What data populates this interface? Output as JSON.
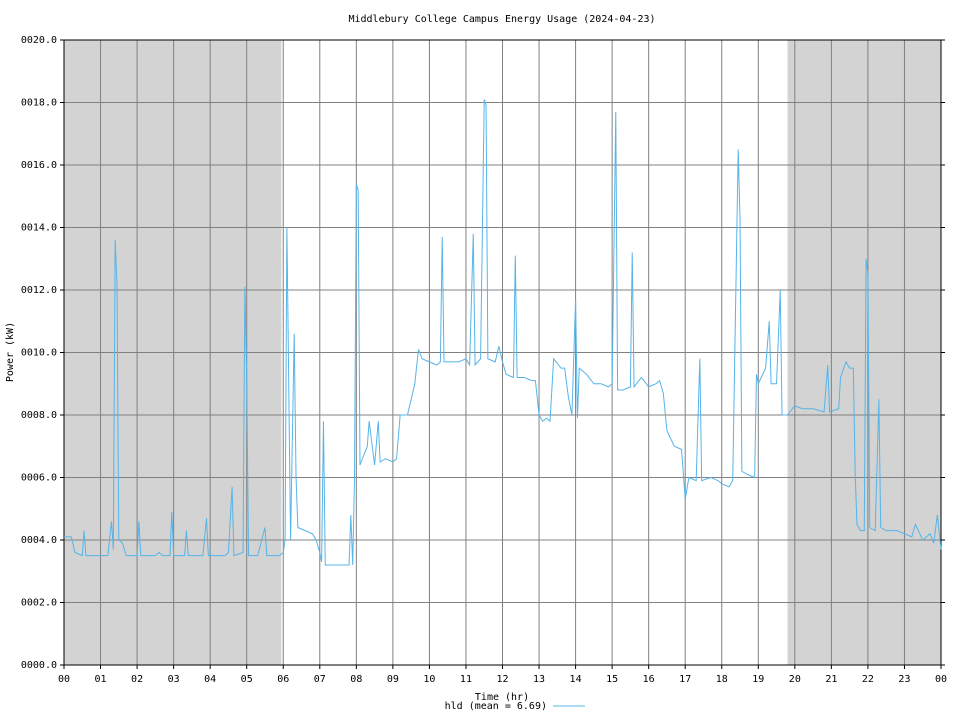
{
  "chart_data": {
    "type": "line",
    "title": "Middlebury College Campus Energy Usage (2024-04-23)",
    "xlabel": "Time (hr)",
    "ylabel": "Power (kW)",
    "xlim": [
      0,
      24
    ],
    "ylim": [
      0,
      20
    ],
    "grid": true,
    "shaded_ranges": [
      [
        0,
        5.95
      ],
      [
        19.8,
        24
      ]
    ],
    "shade_color": "#d3d3d3",
    "xticks": [
      {
        "value": 0,
        "label": "00"
      },
      {
        "value": 1,
        "label": "01"
      },
      {
        "value": 2,
        "label": "02"
      },
      {
        "value": 3,
        "label": "03"
      },
      {
        "value": 4,
        "label": "04"
      },
      {
        "value": 5,
        "label": "05"
      },
      {
        "value": 6,
        "label": "06"
      },
      {
        "value": 7,
        "label": "07"
      },
      {
        "value": 8,
        "label": "08"
      },
      {
        "value": 9,
        "label": "09"
      },
      10,
      11,
      12,
      13,
      14,
      15,
      16,
      17,
      18,
      19,
      20,
      21,
      22,
      23,
      {
        "value": 24,
        "label": "00"
      }
    ],
    "yticks": [
      {
        "value": 0,
        "label": "0000.0"
      },
      {
        "value": 2,
        "label": "0002.0"
      },
      {
        "value": 4,
        "label": "0004.0"
      },
      {
        "value": 6,
        "label": "0006.0"
      },
      {
        "value": 8,
        "label": "0008.0"
      },
      {
        "value": 10,
        "label": "0010.0"
      },
      {
        "value": 12,
        "label": "0012.0"
      },
      {
        "value": 14,
        "label": "0014.0"
      },
      {
        "value": 16,
        "label": "0016.0"
      },
      {
        "value": 18,
        "label": "0018.0"
      },
      {
        "value": 20,
        "label": "0020.0"
      }
    ],
    "x": [
      0.0,
      0.2,
      0.3,
      0.5,
      0.55,
      0.6,
      1.0,
      1.2,
      1.3,
      1.35,
      1.4,
      1.45,
      1.5,
      1.6,
      1.7,
      2.0,
      2.05,
      2.1,
      2.5,
      2.6,
      2.7,
      2.9,
      2.95,
      3.0,
      3.3,
      3.35,
      3.4,
      3.8,
      3.9,
      3.95,
      4.4,
      4.5,
      4.6,
      4.65,
      4.9,
      4.95,
      5.0,
      5.05,
      5.3,
      5.5,
      5.55,
      5.9,
      6.0,
      6.05,
      6.1,
      6.15,
      6.2,
      6.3,
      6.35,
      6.4,
      6.6,
      6.8,
      6.9,
      7.0,
      7.05,
      7.1,
      7.15,
      7.5,
      7.8,
      7.85,
      7.9,
      7.95,
      8.0,
      8.05,
      8.1,
      8.3,
      8.35,
      8.5,
      8.6,
      8.65,
      8.8,
      9.0,
      9.1,
      9.2,
      9.4,
      9.5,
      9.6,
      9.7,
      9.8,
      10.0,
      10.2,
      10.3,
      10.35,
      10.4,
      10.6,
      10.8,
      11.0,
      11.1,
      11.2,
      11.25,
      11.4,
      11.5,
      11.55,
      11.6,
      11.8,
      11.9,
      12.0,
      12.1,
      12.3,
      12.35,
      12.4,
      12.6,
      12.8,
      12.9,
      13.0,
      13.1,
      13.2,
      13.3,
      13.4,
      13.6,
      13.7,
      13.8,
      13.9,
      14.0,
      14.05,
      14.1,
      14.3,
      14.5,
      14.7,
      14.9,
      15.0,
      15.1,
      15.15,
      15.3,
      15.5,
      15.55,
      15.6,
      15.8,
      16.0,
      16.2,
      16.3,
      16.4,
      16.5,
      16.7,
      16.9,
      17.0,
      17.1,
      17.3,
      17.4,
      17.45,
      17.7,
      17.9,
      18.0,
      18.2,
      18.3,
      18.45,
      18.5,
      18.55,
      18.7,
      18.9,
      18.95,
      19.0,
      19.2,
      19.3,
      19.35,
      19.5,
      19.6,
      19.65,
      19.8,
      20.0,
      20.2,
      20.5,
      20.8,
      20.9,
      20.95,
      21.2,
      21.25,
      21.4,
      21.5,
      21.6,
      21.65,
      21.7,
      21.8,
      21.9,
      21.95,
      22.0,
      22.05,
      22.2,
      22.3,
      22.35,
      22.5,
      22.8,
      23.0,
      23.2,
      23.3,
      23.5,
      23.7,
      23.8,
      23.9,
      24.0
    ],
    "series": [
      {
        "name": "hld (mean = 6.69)",
        "color": "#56b4e9",
        "values": [
          4.1,
          4.1,
          3.6,
          3.5,
          4.3,
          3.5,
          3.5,
          3.5,
          4.6,
          3.7,
          13.6,
          12.2,
          4.0,
          3.9,
          3.5,
          3.5,
          4.6,
          3.5,
          3.5,
          3.6,
          3.5,
          3.5,
          4.9,
          3.5,
          3.5,
          4.3,
          3.5,
          3.5,
          4.7,
          3.5,
          3.5,
          3.6,
          5.7,
          3.5,
          3.6,
          12.1,
          9.2,
          3.5,
          3.5,
          4.4,
          3.5,
          3.5,
          3.6,
          4.0,
          14.0,
          9.0,
          4.0,
          10.6,
          6.0,
          4.4,
          4.3,
          4.2,
          4.0,
          3.6,
          3.3,
          7.8,
          3.2,
          3.2,
          3.2,
          4.8,
          3.2,
          6.0,
          15.4,
          15.2,
          6.4,
          7.0,
          7.8,
          6.4,
          7.8,
          6.5,
          6.6,
          6.5,
          6.6,
          8.0,
          8.0,
          8.5,
          9.0,
          10.1,
          9.8,
          9.7,
          9.6,
          9.7,
          13.7,
          9.7,
          9.7,
          9.7,
          9.8,
          9.6,
          13.8,
          9.6,
          9.8,
          18.1,
          17.9,
          9.8,
          9.7,
          10.2,
          9.7,
          9.3,
          9.2,
          13.1,
          9.2,
          9.2,
          9.1,
          9.1,
          8.0,
          7.8,
          7.9,
          7.8,
          9.8,
          9.5,
          9.5,
          8.6,
          8.0,
          11.7,
          7.9,
          9.5,
          9.3,
          9.0,
          9.0,
          8.9,
          9.0,
          17.7,
          8.8,
          8.8,
          8.9,
          13.2,
          8.9,
          9.2,
          8.9,
          9.0,
          9.1,
          8.7,
          7.5,
          7.0,
          6.9,
          5.3,
          6.0,
          5.9,
          9.8,
          5.9,
          6.0,
          5.9,
          5.8,
          5.7,
          5.9,
          16.5,
          14.3,
          6.2,
          6.1,
          6.0,
          9.3,
          9.0,
          9.5,
          11.0,
          9.0,
          9.0,
          12.0,
          8.0,
          8.0,
          8.3,
          8.2,
          8.2,
          8.1,
          9.6,
          8.1,
          8.2,
          9.2,
          9.7,
          9.5,
          9.5,
          6.2,
          4.5,
          4.3,
          4.3,
          13.0,
          12.5,
          4.4,
          4.3,
          8.5,
          4.4,
          4.3,
          4.3,
          4.2,
          4.1,
          4.5,
          4.0,
          4.2,
          3.9,
          4.8,
          3.7
        ]
      }
    ]
  }
}
